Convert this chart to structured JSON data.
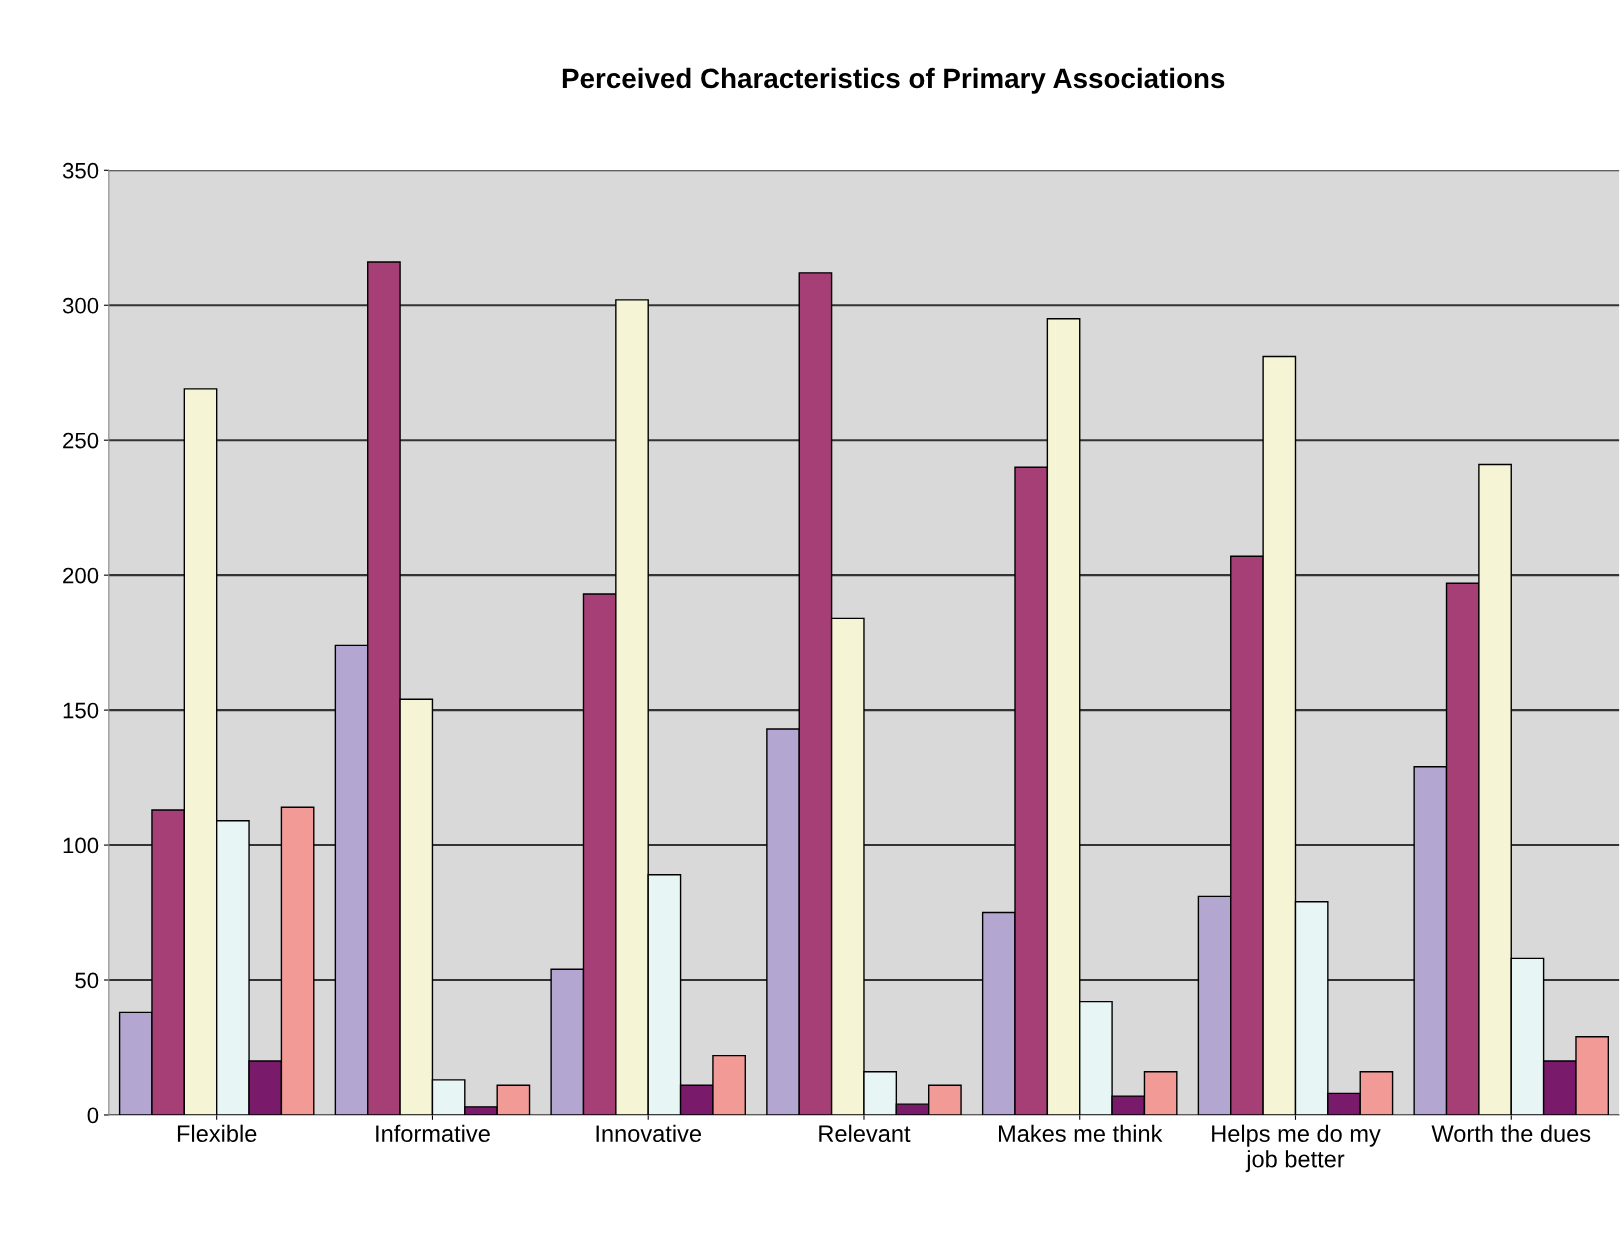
{
  "chart_data": {
    "type": "bar",
    "title": "Perceived Characteristics of Primary Associations",
    "categories": [
      "Flexible",
      "Informative",
      "Innovative",
      "Relevant",
      "Makes me think",
      "Helps me do my\njob better",
      "Worth the dues"
    ],
    "series": [
      {
        "color": "#b3a6d1",
        "values": [
          38,
          174,
          54,
          143,
          75,
          81,
          129
        ]
      },
      {
        "color": "#a63f75",
        "values": [
          113,
          316,
          193,
          312,
          240,
          207,
          197
        ]
      },
      {
        "color": "#f5f5d6",
        "values": [
          269,
          154,
          302,
          184,
          295,
          281,
          241
        ]
      },
      {
        "color": "#e8f5f5",
        "values": [
          109,
          13,
          89,
          16,
          42,
          79,
          58
        ]
      },
      {
        "color": "#7a1a6b",
        "values": [
          20,
          3,
          11,
          4,
          7,
          8,
          20
        ]
      },
      {
        "color": "#f29b96",
        "values": [
          114,
          11,
          22,
          11,
          16,
          16,
          29
        ]
      }
    ],
    "ylim": [
      0,
      350
    ],
    "yticks": [
      0,
      50,
      100,
      150,
      200,
      250,
      300,
      350
    ],
    "grid": "y"
  }
}
